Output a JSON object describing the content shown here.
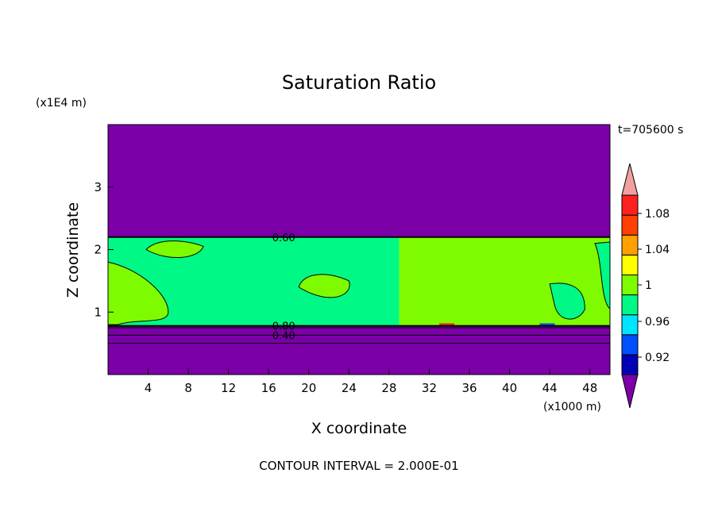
{
  "chart_data": {
    "type": "heatmap",
    "title": "Saturation Ratio",
    "xlabel": "X coordinate",
    "ylabel": "Z coordinate",
    "x_unit": "(x1000 m)",
    "y_unit": "(x1E4 m)",
    "time_label": "t=705600 s",
    "footer": "CONTOUR INTERVAL = 2.000E-01",
    "xlim": [
      0,
      50
    ],
    "ylim": [
      0,
      4
    ],
    "x_ticks": [
      "4",
      "8",
      "12",
      "16",
      "20",
      "24",
      "28",
      "32",
      "36",
      "40",
      "44",
      "48"
    ],
    "y_ticks": [
      "1",
      "2",
      "3"
    ],
    "contour_labels": [
      {
        "text": "0.60",
        "x": 17.5,
        "z": 2.2
      },
      {
        "text": "0.80",
        "x": 17.5,
        "z": 0.78
      },
      {
        "text": "0.40",
        "x": 17.5,
        "z": 0.63
      }
    ],
    "regions": [
      {
        "name": "upper-dry",
        "z_range": [
          2.2,
          4.0
        ],
        "range": "< 0.92",
        "color": "#7b00a8"
      },
      {
        "name": "cloud-left",
        "x_range": [
          0,
          29
        ],
        "z_range": [
          0.78,
          2.2
        ],
        "range": "0.98-1.00",
        "color": "#00f887"
      },
      {
        "name": "cloud-right",
        "x_range": [
          29,
          50
        ],
        "z_range": [
          0.78,
          2.2
        ],
        "range": "1.00-1.02",
        "color": "#7ffb00"
      },
      {
        "name": "lower-dry",
        "z_range": [
          0.0,
          0.78
        ],
        "range": "< 0.92",
        "color": "#7b00a8"
      }
    ],
    "colorbar": {
      "labels": [
        "1.08",
        "1.04",
        "1",
        "0.96",
        "0.92"
      ],
      "colors": [
        "#7b00a8",
        "#0000b4",
        "#0050ff",
        "#00e4ff",
        "#00f887",
        "#7ffb00",
        "#ffff00",
        "#ffa000",
        "#ff4000",
        "#ff2020",
        "#f0a0a0"
      ]
    }
  }
}
